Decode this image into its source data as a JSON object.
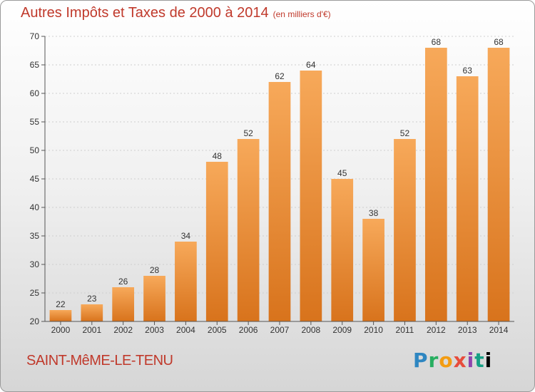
{
  "title": "Autres Impôts et Taxes de 2000 à 2014",
  "title_unit": "(en milliers d'€)",
  "footer_name": "SAINT-MêME-LE-TENU",
  "logo_text": "Proxiti",
  "colors": {
    "bar_top": "#f7a95a",
    "bar_bottom": "#d8731c",
    "title": "#c0392b",
    "text": "#333333"
  },
  "chart_data": {
    "type": "bar",
    "categories": [
      "2000",
      "2001",
      "2002",
      "2003",
      "2004",
      "2005",
      "2006",
      "2007",
      "2008",
      "2009",
      "2010",
      "2011",
      "2012",
      "2013",
      "2014"
    ],
    "values": [
      22,
      23,
      26,
      28,
      34,
      48,
      52,
      62,
      64,
      45,
      38,
      52,
      68,
      63,
      68
    ],
    "ylim": [
      20,
      70
    ],
    "yticks": [
      20,
      25,
      30,
      35,
      40,
      45,
      50,
      55,
      60,
      65,
      70
    ],
    "grid": true
  }
}
